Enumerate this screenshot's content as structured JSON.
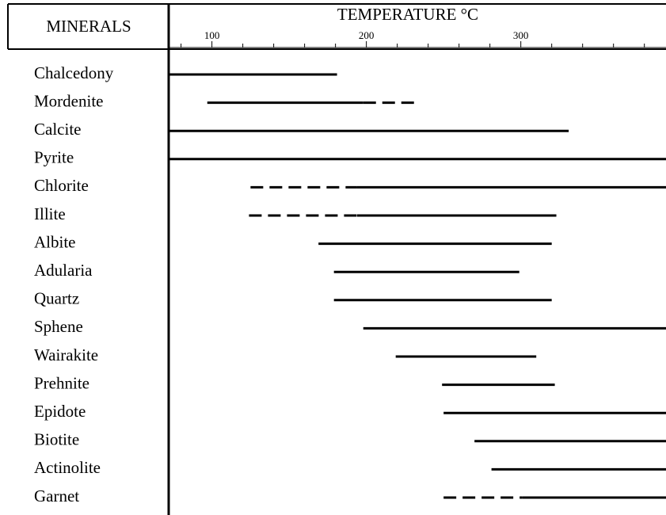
{
  "chart_data": {
    "type": "range",
    "category_header": "MINERALS",
    "x_label": "TEMPERATURE °C",
    "xlim": [
      72,
      394
    ],
    "xticks": [
      100,
      200,
      300
    ],
    "xminor_ticks": [
      80,
      120,
      140,
      160,
      180,
      220,
      240,
      260,
      280,
      320,
      340,
      360,
      380
    ],
    "color": "#000000",
    "categories": [
      "Chalcedony",
      "Mordenite",
      "Calcite",
      "Pyrite",
      "Chlorite",
      "Illite",
      "Albite",
      "Adularia",
      "Quartz",
      "Sphene",
      "Wairakite",
      "Prehnite",
      "Epidote",
      "Biotite",
      "Actinolite",
      "Garnet"
    ],
    "ranges": [
      [
        {
          "start": 72,
          "end": 181,
          "dashed": false
        }
      ],
      [
        {
          "start": 97,
          "end": 198,
          "dashed": false
        },
        {
          "start": 198,
          "end": 232,
          "dashed": true
        }
      ],
      [
        {
          "start": 72,
          "end": 331,
          "dashed": false
        }
      ],
      [
        {
          "start": 72,
          "end": 394,
          "dashed": false
        }
      ],
      [
        {
          "start": 125,
          "end": 194,
          "dashed": true
        },
        {
          "start": 194,
          "end": 394,
          "dashed": false
        }
      ],
      [
        {
          "start": 124,
          "end": 194,
          "dashed": true
        },
        {
          "start": 194,
          "end": 323,
          "dashed": false
        }
      ],
      [
        {
          "start": 169,
          "end": 320,
          "dashed": false
        }
      ],
      [
        {
          "start": 179,
          "end": 299,
          "dashed": false
        }
      ],
      [
        {
          "start": 179,
          "end": 320,
          "dashed": false
        }
      ],
      [
        {
          "start": 198,
          "end": 394,
          "dashed": false
        }
      ],
      [
        {
          "start": 219,
          "end": 310,
          "dashed": false
        }
      ],
      [
        {
          "start": 249,
          "end": 322,
          "dashed": false
        }
      ],
      [
        {
          "start": 250,
          "end": 394,
          "dashed": false
        }
      ],
      [
        {
          "start": 270,
          "end": 394,
          "dashed": false
        }
      ],
      [
        {
          "start": 281,
          "end": 394,
          "dashed": false
        }
      ],
      [
        {
          "start": 250,
          "end": 301,
          "dashed": true
        },
        {
          "start": 301,
          "end": 394,
          "dashed": false
        }
      ]
    ]
  }
}
